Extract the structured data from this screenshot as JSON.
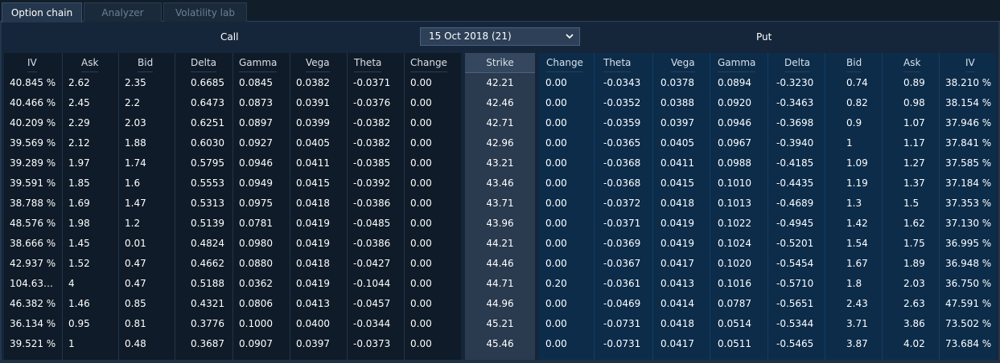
{
  "tabs": [
    {
      "label": "Option chain",
      "active": true
    },
    {
      "label": "Analyzer",
      "active": false
    },
    {
      "label": "Volatility lab",
      "active": false
    }
  ],
  "header": {
    "call_label": "Call",
    "put_label": "Put",
    "expiry_value": "15 Oct 2018 (21)"
  },
  "colors": {
    "call_panel": "#0f1b28",
    "put_panel": "#0c2c4a",
    "strike_panel": "#2a3a4f",
    "active_tab": "#24374d"
  },
  "call_columns": [
    "IV",
    "Ask",
    "Bid",
    "Delta",
    "Gamma",
    "Vega",
    "Theta",
    "Change"
  ],
  "strike_column": "Strike",
  "put_columns": [
    "Change",
    "Theta",
    "Vega",
    "Gamma",
    "Delta",
    "Bid",
    "Ask",
    "IV"
  ],
  "rows": [
    {
      "call": [
        "40.845 %",
        "2.62",
        "2.35",
        "0.6685",
        "0.0845",
        "0.0382",
        "-0.0371",
        "0.00"
      ],
      "strike": "42.21",
      "put": [
        "0.00",
        "-0.0343",
        "0.0378",
        "0.0894",
        "-0.3230",
        "0.74",
        "0.89",
        "38.210 %"
      ]
    },
    {
      "call": [
        "40.466 %",
        "2.45",
        "2.2",
        "0.6473",
        "0.0873",
        "0.0391",
        "-0.0376",
        "0.00"
      ],
      "strike": "42.46",
      "put": [
        "0.00",
        "-0.0352",
        "0.0388",
        "0.0920",
        "-0.3463",
        "0.82",
        "0.98",
        "38.154 %"
      ]
    },
    {
      "call": [
        "40.209 %",
        "2.29",
        "2.03",
        "0.6251",
        "0.0897",
        "0.0399",
        "-0.0382",
        "0.00"
      ],
      "strike": "42.71",
      "put": [
        "0.00",
        "-0.0359",
        "0.0397",
        "0.0946",
        "-0.3698",
        "0.9",
        "1.07",
        "37.946 %"
      ]
    },
    {
      "call": [
        "39.569 %",
        "2.12",
        "1.88",
        "0.6030",
        "0.0927",
        "0.0405",
        "-0.0382",
        "0.00"
      ],
      "strike": "42.96",
      "put": [
        "0.00",
        "-0.0365",
        "0.0405",
        "0.0967",
        "-0.3940",
        "1",
        "1.17",
        "37.841 %"
      ]
    },
    {
      "call": [
        "39.289 %",
        "1.97",
        "1.74",
        "0.5795",
        "0.0946",
        "0.0411",
        "-0.0385",
        "0.00"
      ],
      "strike": "43.21",
      "put": [
        "0.00",
        "-0.0368",
        "0.0411",
        "0.0988",
        "-0.4185",
        "1.09",
        "1.27",
        "37.585 %"
      ]
    },
    {
      "call": [
        "39.591 %",
        "1.85",
        "1.6",
        "0.5553",
        "0.0949",
        "0.0415",
        "-0.0392",
        "0.00"
      ],
      "strike": "43.46",
      "put": [
        "0.00",
        "-0.0368",
        "0.0415",
        "0.1010",
        "-0.4435",
        "1.19",
        "1.37",
        "37.184 %"
      ]
    },
    {
      "call": [
        "38.788 %",
        "1.69",
        "1.47",
        "0.5313",
        "0.0975",
        "0.0418",
        "-0.0386",
        "0.00"
      ],
      "strike": "43.71",
      "put": [
        "0.00",
        "-0.0372",
        "0.0418",
        "0.1013",
        "-0.4689",
        "1.3",
        "1.5",
        "37.353 %"
      ]
    },
    {
      "call": [
        "48.576 %",
        "1.98",
        "1.2",
        "0.5139",
        "0.0781",
        "0.0419",
        "-0.0485",
        "0.00"
      ],
      "strike": "43.96",
      "put": [
        "0.00",
        "-0.0371",
        "0.0419",
        "0.1022",
        "-0.4945",
        "1.42",
        "1.62",
        "37.130 %"
      ]
    },
    {
      "call": [
        "38.666 %",
        "1.45",
        "0.01",
        "0.4824",
        "0.0980",
        "0.0419",
        "-0.0386",
        "0.00"
      ],
      "strike": "44.21",
      "put": [
        "0.00",
        "-0.0369",
        "0.0419",
        "0.1024",
        "-0.5201",
        "1.54",
        "1.75",
        "36.995 %"
      ]
    },
    {
      "call": [
        "42.937 %",
        "1.52",
        "0.47",
        "0.4662",
        "0.0880",
        "0.0418",
        "-0.0427",
        "0.00"
      ],
      "strike": "44.46",
      "put": [
        "0.00",
        "-0.0367",
        "0.0417",
        "0.1020",
        "-0.5454",
        "1.67",
        "1.89",
        "36.948 %"
      ]
    },
    {
      "call": [
        "104.63…",
        "4",
        "0.47",
        "0.5188",
        "0.0362",
        "0.0419",
        "-0.1044",
        "0.00"
      ],
      "strike": "44.71",
      "put": [
        "0.20",
        "-0.0361",
        "0.0413",
        "0.1016",
        "-0.5710",
        "1.8",
        "2.03",
        "36.750 %"
      ]
    },
    {
      "call": [
        "46.382 %",
        "1.46",
        "0.85",
        "0.4321",
        "0.0806",
        "0.0413",
        "-0.0457",
        "0.00"
      ],
      "strike": "44.96",
      "put": [
        "0.00",
        "-0.0469",
        "0.0414",
        "0.0787",
        "-0.5651",
        "2.43",
        "2.63",
        "47.591 %"
      ]
    },
    {
      "call": [
        "36.134 %",
        "0.95",
        "0.81",
        "0.3776",
        "0.1000",
        "0.0400",
        "-0.0344",
        "0.00"
      ],
      "strike": "45.21",
      "put": [
        "0.00",
        "-0.0731",
        "0.0418",
        "0.0514",
        "-0.5344",
        "3.71",
        "3.86",
        "73.502 %"
      ]
    },
    {
      "call": [
        "39.521 %",
        "1",
        "0.48",
        "0.3687",
        "0.0907",
        "0.0397",
        "-0.0373",
        "0.00"
      ],
      "strike": "45.46",
      "put": [
        "0.00",
        "-0.0731",
        "0.0417",
        "0.0511",
        "-0.5465",
        "3.87",
        "4.02",
        "73.684 %"
      ]
    }
  ]
}
